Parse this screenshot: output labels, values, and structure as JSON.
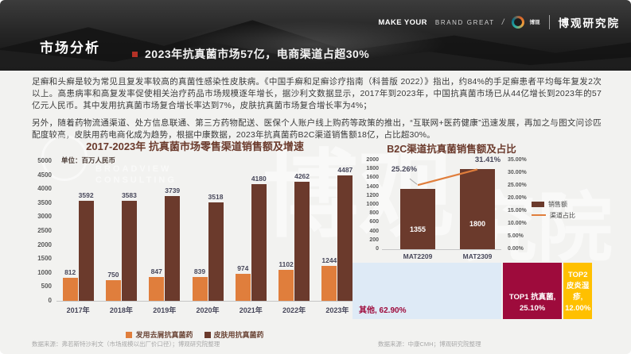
{
  "header": {
    "page_title": "市场分析",
    "subtitle": "2023年抗真菌市场57亿，电商渠道占超30%",
    "brand": {
      "tagline_bold": "MAKE YOUR",
      "tagline_rest": "BRAND GREAT",
      "separator": "/",
      "logo_text": "博观",
      "org_name": "博观研究院"
    }
  },
  "body": {
    "paragraph1": "足癣和头癣是较为常见且复发率较高的真菌性感染性皮肤病。《中国手癣和足癣诊疗指南（科普版 2022）》指出，约84%的手足癣患者平均每年复发2次以上。高患病率和高复发率促使相关治疗药品市场规模逐年增长，据沙利文数据显示，2017年到2023年，中国抗真菌市场已从44亿增长到2023年的57亿元人民币。其中发用抗真菌市场复合增长率达到7%，皮肤抗真菌市场复合增长率为4%；",
    "paragraph2": "另外，随着药物流通渠道、处方信息联通、第三方药物配送、医保个人账户线上购药等政策的推出，“互联网+医药健康”迅速发展，再加之与图文问诊匹配度较高，皮肤用药电商化成为趋势，根据中康数据，2023年抗真菌药B2C渠道销售额18亿，占比超30%。"
  },
  "watermark": {
    "broadview_line1": "BROADVIEW",
    "broadview_line2": "CONSULTING",
    "big1": "博观",
    "big2": "究院"
  },
  "colors": {
    "accent_red": "#B43126",
    "bar_orange": "#E07E3C",
    "bar_brown": "#6B3A2C",
    "label_dark": "#47475A",
    "axis_gray": "#595959",
    "crimson": "#9E0B3C",
    "gold": "#FFC000",
    "light_blue": "#DEEAF6",
    "background": "#F2F2F0"
  },
  "chart_data": [
    {
      "type": "bar",
      "title": "2017-2023年 抗真菌市场零售渠道销售额及增速",
      "unit_label": "单位：百万人民币",
      "categories": [
        "2017年",
        "2018年",
        "2019年",
        "2020年",
        "2021年",
        "2022年",
        "2023年"
      ],
      "series": [
        {
          "name": "发用去屑抗真菌药",
          "color": "#E07E3C",
          "values": [
            812,
            750,
            847,
            839,
            974,
            1102,
            1244
          ]
        },
        {
          "name": "皮肤用抗真菌药",
          "color": "#6B3A2C",
          "values": [
            3592,
            3583,
            3739,
            3518,
            4180,
            4262,
            4487
          ]
        }
      ],
      "ylim": [
        0,
        5000
      ],
      "ytick_step": 500,
      "grid": false,
      "legend_position": "bottom",
      "source": "数据来源：弗若斯特沙利文（市场规模以出厂价口径）；博观研究院整理"
    },
    {
      "type": "bar+line",
      "title": "B2C渠道抗真菌销售额及占比",
      "categories": [
        "MAT2209",
        "MAT2309"
      ],
      "bar_series": {
        "name": "销售额",
        "color": "#6B3A2C",
        "values": [
          1355,
          1800
        ]
      },
      "line_series": {
        "name": "渠道占比",
        "color": "#E07E3C",
        "values": [
          25.26,
          31.41
        ],
        "labels": [
          "25.26%",
          "31.41%"
        ]
      },
      "ylim_left": [
        0,
        2000
      ],
      "ytick_step_left": 200,
      "ylim_right": [
        0,
        35
      ],
      "ytick_step_right": 5,
      "grid": false,
      "legend_position": "right",
      "source": "数据来源：中康CMH；博观研究院整理"
    },
    {
      "type": "treemap-bar",
      "title": "",
      "segments": [
        {
          "label": "其他, 62.90%",
          "value": 62.9,
          "color": "#DEEAF6",
          "text_color": "#9E0B3C"
        },
        {
          "label": "TOP1 抗真菌, 25.10%",
          "value": 25.1,
          "color": "#9E0B3C",
          "text_color": "#FFFFFF"
        },
        {
          "label": "TOP2 皮炎湿疹, 12.00%",
          "value": 12.0,
          "color": "#FFC000",
          "text_color": "#FFFFFF"
        }
      ]
    }
  ]
}
